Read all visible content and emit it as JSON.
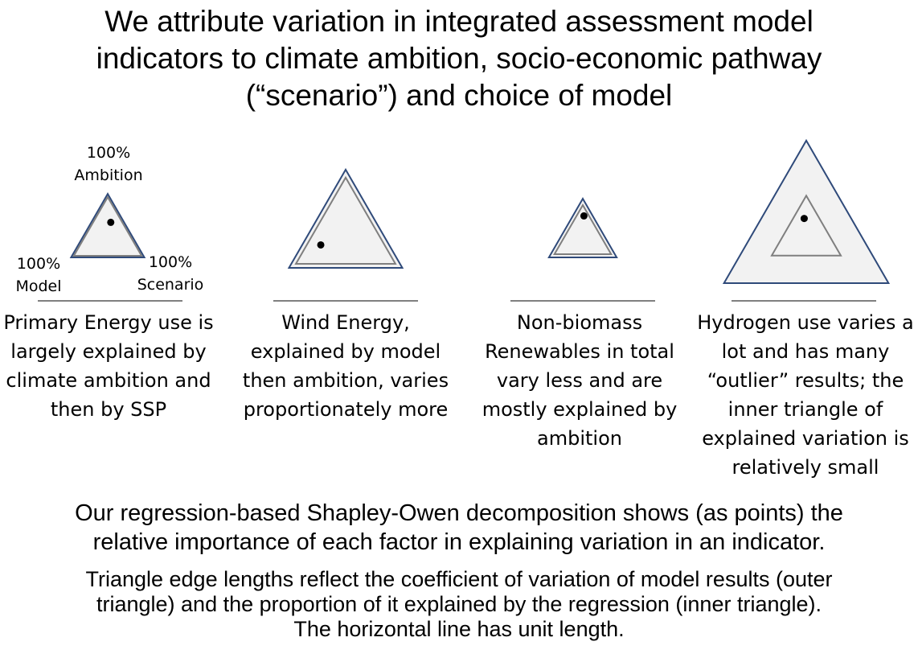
{
  "title": {
    "lines": [
      "We attribute variation in integrated assessment model",
      "indicators to climate ambition, socio-economic pathway",
      "(“scenario”) and choice of model"
    ]
  },
  "vertex_labels": {
    "ambition": [
      "100%",
      "Ambition"
    ],
    "model": [
      "100%",
      "Model"
    ],
    "scenario": [
      "100%",
      "Scenario"
    ]
  },
  "panels": [
    {
      "caption": [
        "Primary Energy use is",
        "largely explained by",
        "climate ambition and",
        "then by SSP"
      ],
      "outer_scale": 0.53,
      "inner_scale": 0.49,
      "point": {
        "ambition": 0.57,
        "scenario": 0.26,
        "model": 0.17
      }
    },
    {
      "caption": [
        "Wind Energy,",
        "explained by model",
        "then ambition, varies",
        "proportionately more"
      ],
      "outer_scale": 0.82,
      "inner_scale": 0.72,
      "point": {
        "ambition": 0.22,
        "scenario": 0.14,
        "model": 0.64
      }
    },
    {
      "caption": [
        "Non-biomass",
        "Renewables in total",
        "vary less and are",
        "mostly explained by",
        "ambition"
      ],
      "outer_scale": 0.49,
      "inner_scale": 0.41,
      "point": {
        "ambition": 0.78,
        "scenario": 0.13,
        "model": 0.09
      }
    },
    {
      "caption": [
        "Hydrogen use varies a",
        "lot and has many",
        "“outlier” results; the",
        "inner triangle of",
        "explained variation is",
        "relatively small"
      ],
      "outer_scale": 1.19,
      "inner_scale": 0.5,
      "point": {
        "ambition": 0.62,
        "scenario": 0.16,
        "model": 0.22
      }
    }
  ],
  "colors": {
    "outer_stroke": "#2f4a7a",
    "inner_stroke": "#7f7f7f",
    "fill": "#f2f2f2",
    "point": "#000000"
  },
  "footer": {
    "lines": [
      "Our regression-based Shapley-Owen decomposition shows (as points) the",
      "relative importance of each factor in explaining variation in an indicator."
    ],
    "small_lines": [
      "Triangle edge lengths reflect the coefficient of variation of model results (outer",
      "triangle) and the proportion of it explained by the regression (inner triangle).",
      "The horizontal line has unit length."
    ]
  }
}
